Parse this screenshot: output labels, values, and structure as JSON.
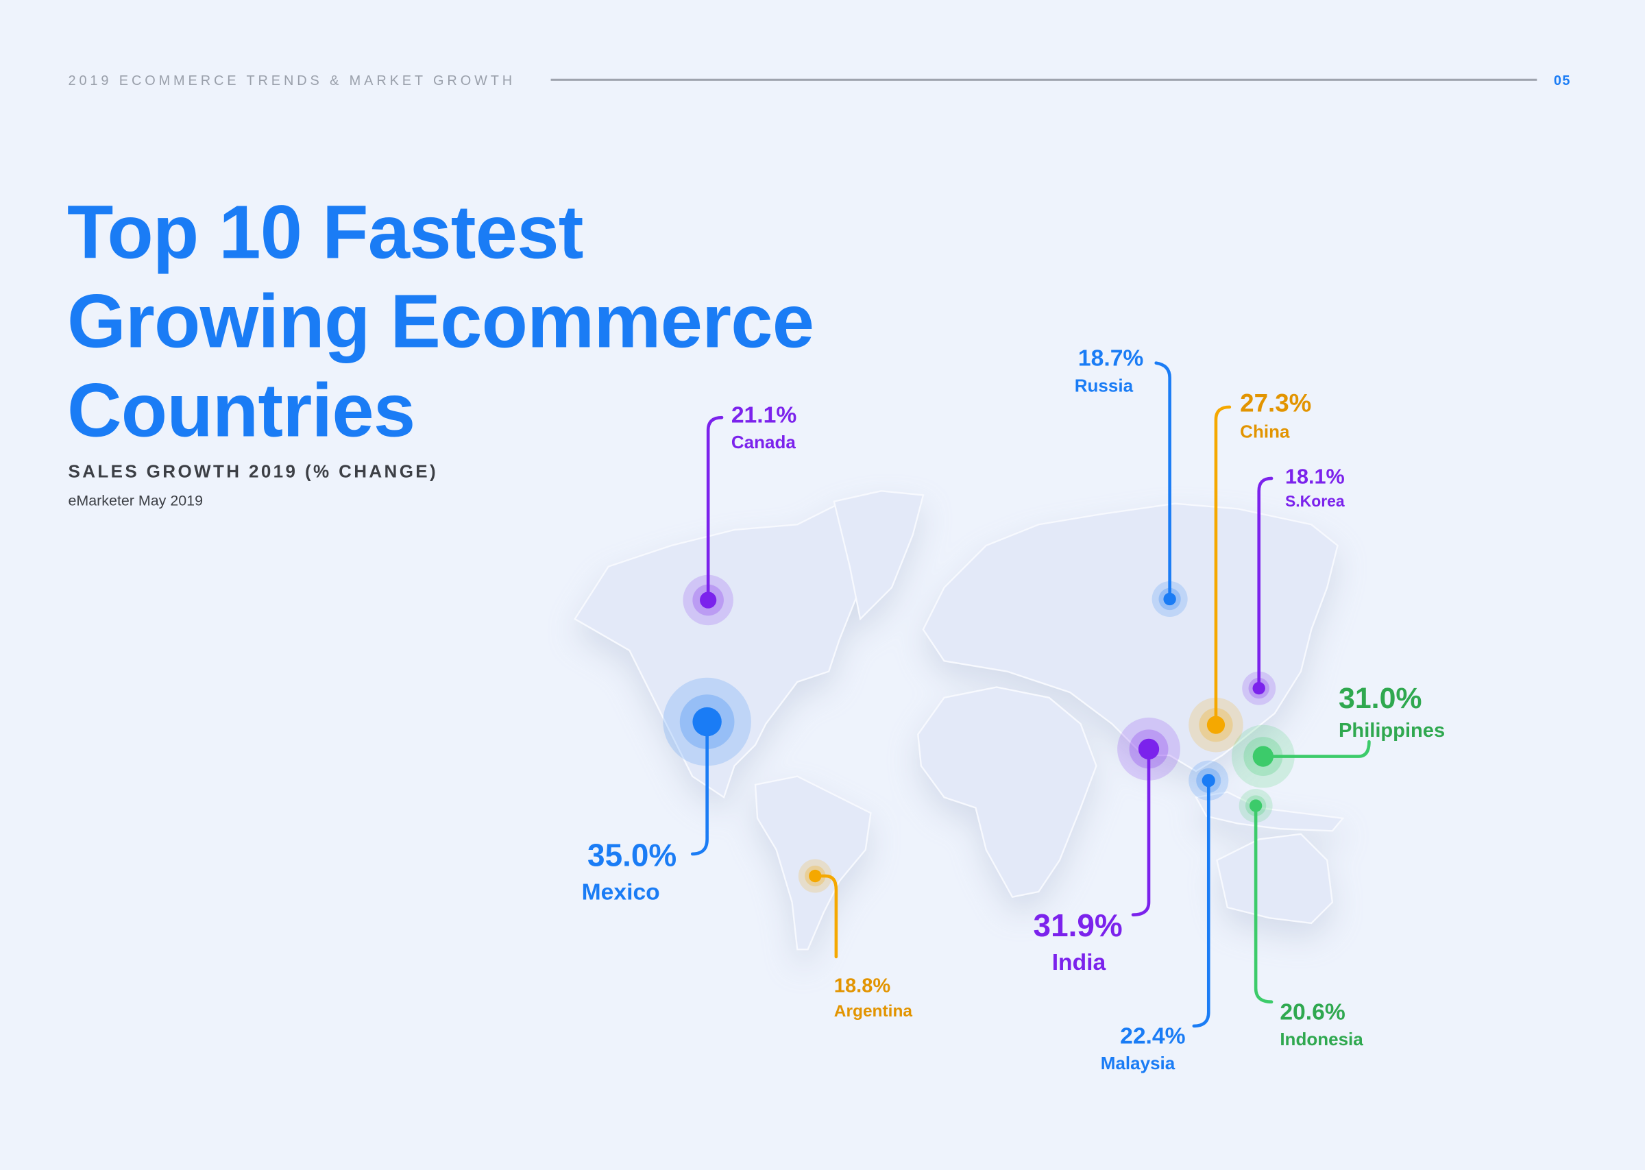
{
  "header": {
    "section": "2019 ECOMMERCE TRENDS & MARKET GROWTH",
    "page": "05"
  },
  "title_lines": [
    "Top 10 Fastest",
    "Growing Ecommerce",
    "Countries"
  ],
  "subtitle": "SALES GROWTH 2019 (% CHANGE)",
  "source": "eMarketer May 2019",
  "colors": {
    "blue": "#1a7cf5",
    "purple": "#7b22ec",
    "orange": "#f5a800",
    "orange_text": "#e29400",
    "green": "#3ccb6a",
    "green_text": "#2fa84f",
    "background": "#eef3fc"
  },
  "chart_data": {
    "type": "map",
    "title": "Top 10 Fastest Growing Ecommerce Countries",
    "subtitle": "SALES GROWTH 2019 (% CHANGE)",
    "points": [
      {
        "country": "Mexico",
        "value": 35.0,
        "label": "35.0%",
        "color": "blue"
      },
      {
        "country": "India",
        "value": 31.9,
        "label": "31.9%",
        "color": "purple"
      },
      {
        "country": "Philippines",
        "value": 31.0,
        "label": "31.0%",
        "color": "green"
      },
      {
        "country": "China",
        "value": 27.3,
        "label": "27.3%",
        "color": "orange"
      },
      {
        "country": "Malaysia",
        "value": 22.4,
        "label": "22.4%",
        "color": "blue"
      },
      {
        "country": "Canada",
        "value": 21.1,
        "label": "21.1%",
        "color": "purple"
      },
      {
        "country": "Indonesia",
        "value": 20.6,
        "label": "20.6%",
        "color": "green"
      },
      {
        "country": "Argentina",
        "value": 18.8,
        "label": "18.8%",
        "color": "orange"
      },
      {
        "country": "Russia",
        "value": 18.7,
        "label": "18.7%",
        "color": "blue"
      },
      {
        "country": "S.Korea",
        "value": 18.1,
        "label": "18.1%",
        "color": "purple"
      }
    ]
  }
}
